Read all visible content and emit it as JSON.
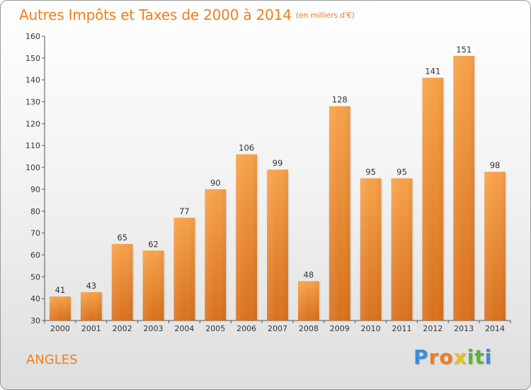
{
  "chart_data": {
    "type": "bar",
    "title": "Autres Impôts et Taxes de 2000 à 2014",
    "unit_note": "(en milliers d'€)",
    "categories": [
      "2000",
      "2001",
      "2002",
      "2003",
      "2004",
      "2005",
      "2006",
      "2007",
      "2008",
      "2009",
      "2010",
      "2011",
      "2012",
      "2013",
      "2014"
    ],
    "values": [
      41,
      43,
      65,
      62,
      77,
      90,
      106,
      99,
      48,
      128,
      95,
      95,
      141,
      151,
      98
    ],
    "ylim": [
      30,
      160
    ],
    "yticks": [
      30,
      40,
      50,
      60,
      70,
      80,
      90,
      100,
      110,
      120,
      130,
      140,
      150,
      160
    ],
    "grid": false,
    "bar_color": "#f0922e"
  },
  "commune": "ANGLES",
  "logo": {
    "letters": [
      "P",
      "r",
      "o",
      "x",
      "i",
      "t",
      "i"
    ],
    "colors": [
      "#3a8fd8",
      "#f07e1e",
      "#f07e1e",
      "#e8c21a",
      "#5cb531",
      "#5cb531",
      "#3a8fd8"
    ]
  }
}
